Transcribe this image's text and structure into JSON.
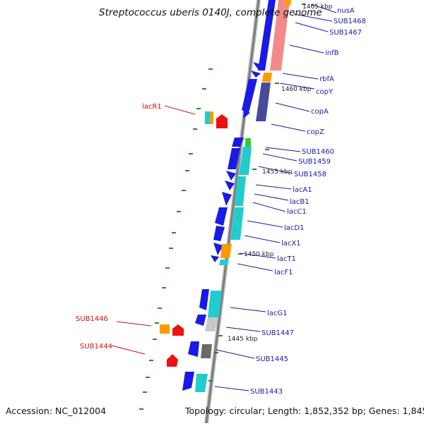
{
  "title": "Streptococcus uberis 0140J, complete genome",
  "footer": {
    "accession": "Accession: NC_012004",
    "topology": "Topology: circular; Length: 1,852,352 bp; Genes: 1,845"
  },
  "colors": {
    "backbone": "#8a8a8a",
    "forward_gene": "#1a1ae6",
    "cds": "#22cccc",
    "label_blue": "#1a1aa8",
    "label_red": "#cc1111",
    "tick": "#2a8a2a"
  },
  "scale_labels": [
    "1465 kbp",
    "1460 kbp",
    "1455 kbp",
    "1450 kbp",
    "1445 kbp"
  ],
  "genes_right": [
    "nusA",
    "SUB1468",
    "SUB1467",
    "infB",
    "rbfA",
    "copY",
    "copA",
    "copZ",
    "SUB1460",
    "SUB1459",
    "SUB1458",
    "lacA1",
    "lacB1",
    "lacC1",
    "lacD1",
    "lacX1",
    "lacT1",
    "lacF1",
    "lacG1",
    "SUB1447",
    "SUB1445",
    "SUB1443"
  ],
  "genes_left": [
    "lacR1",
    "SUB1446",
    "SUB1444"
  ]
}
